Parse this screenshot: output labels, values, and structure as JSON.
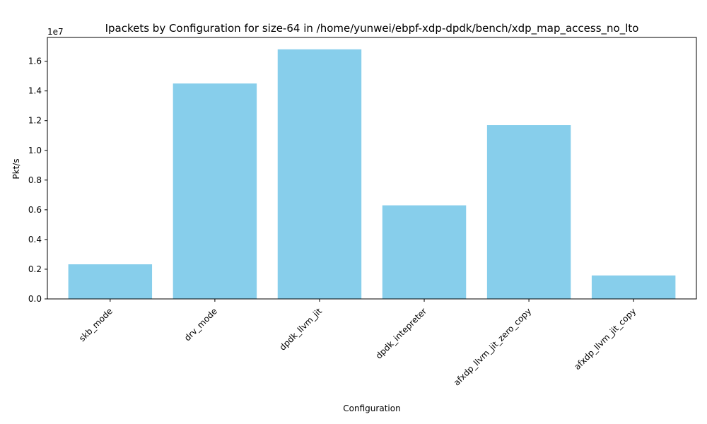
{
  "chart_data": {
    "type": "bar",
    "title": "Ipackets by Configuration for size-64 in /home/yunwei/ebpf-xdp-dpdk/bench/xdp_map_access_no_lto",
    "xlabel": "Configuration",
    "ylabel": "Pkt/s",
    "y_offset_label": "1e7",
    "categories": [
      "skb_mode",
      "drv_mode",
      "dpdk_llvm_jit",
      "dpdk_intepreter",
      "afxdp_llvm_jit_zero_copy",
      "afxdp_llvm_jit_copy"
    ],
    "values": [
      2330000,
      14500000,
      16800000,
      6300000,
      11700000,
      1580000
    ],
    "ylim": [
      0,
      17600000
    ],
    "yticks": [
      0,
      2000000,
      4000000,
      6000000,
      8000000,
      10000000,
      12000000,
      14000000,
      16000000
    ],
    "ytick_labels": [
      "0.0",
      "0.2",
      "0.4",
      "0.6",
      "0.8",
      "1.0",
      "1.2",
      "1.4",
      "1.6"
    ],
    "bar_color": "#87CEEB",
    "grid": false,
    "legend": "none"
  }
}
